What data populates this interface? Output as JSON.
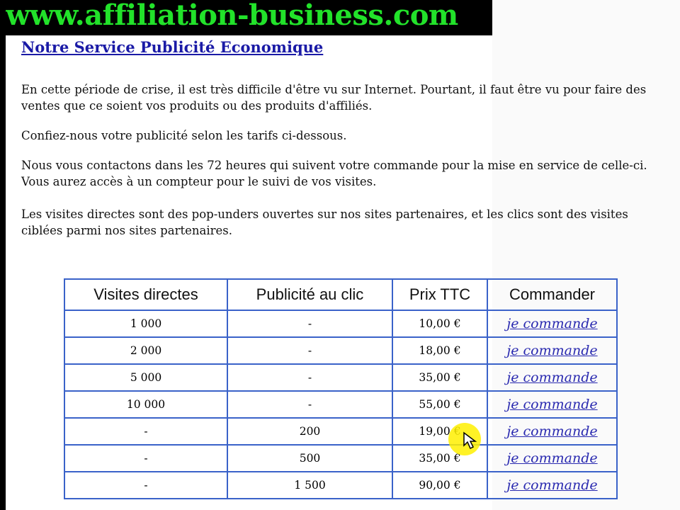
{
  "banner": {
    "text": "www.affiliation-business.com"
  },
  "title": "Notre Service Publicité Economique",
  "paragraphs": [
    "En cette période de crise, il est très difficile d'être vu sur Internet. Pourtant, il faut être vu pour faire des ventes que ce soient vos produits ou des produits d'affiliés.",
    "Confiez-nous votre publicité selon les tarifs ci-dessous.",
    "Nous vous contactons dans les 72 heures qui suivent votre commande pour la mise en service de celle-ci. Vous aurez accès à un compteur pour le suivi de vos visites.",
    "Les visites directes sont des pop-unders ouvertes sur nos sites partenaires, et les clics sont des visites ciblées parmi nos sites partenaires."
  ],
  "table": {
    "headers": [
      "Visites directes",
      "Publicité au clic",
      "Prix TTC",
      "Commander"
    ],
    "rows": [
      [
        "1 000",
        "-",
        "10,00 €",
        "je commande"
      ],
      [
        "2 000",
        "-",
        "18,00 €",
        "je commande"
      ],
      [
        "5 000",
        "-",
        "35,00 €",
        "je commande"
      ],
      [
        "10 000",
        "-",
        "55,00 €",
        "je commande"
      ],
      [
        "-",
        "200",
        "19,00 €",
        "je commande"
      ],
      [
        "-",
        "500",
        "35,00 €",
        "je commande"
      ],
      [
        "-",
        "1 500",
        "90,00 €",
        "je commande"
      ]
    ]
  },
  "colors": {
    "banner_text": "#22e22a",
    "link": "#1a1aa6",
    "table_border": "#3a62c9",
    "cursor_highlight": "#fff000"
  }
}
